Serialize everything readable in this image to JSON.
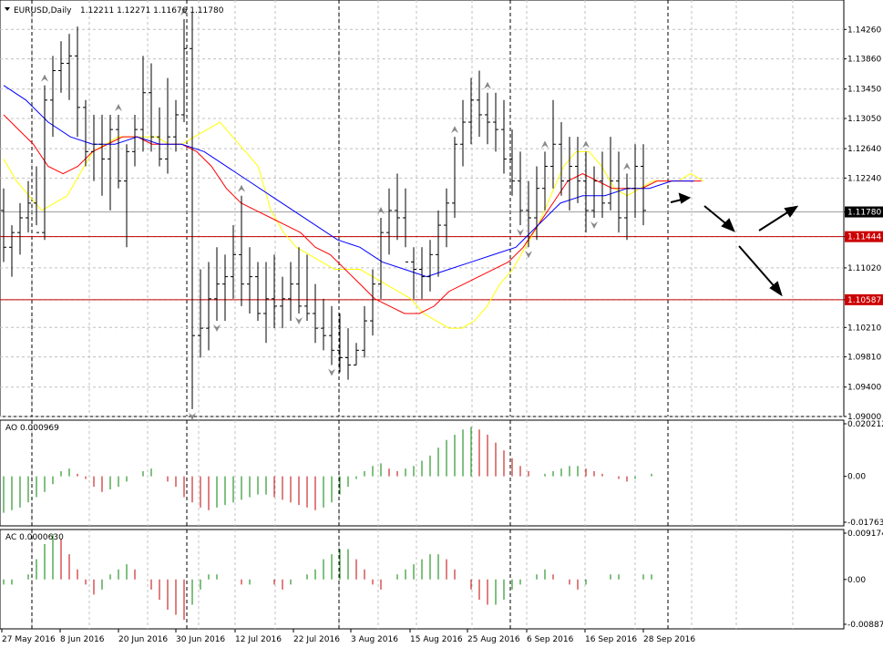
{
  "header": {
    "symbol_text": "EURUSD,Daily",
    "ohlc_text": "1.12211 1.12271 1.11676 1.11780"
  },
  "colors": {
    "bars": "#000000",
    "grid": "#c0c0c0",
    "level_lines": "#c00000",
    "ma_yellow": "#ffff00",
    "ma_red": "#ff0000",
    "ma_blue": "#0000ff",
    "ao_up": "#008000",
    "ao_down": "#c00000",
    "current_price_bg": "#000000",
    "level_label_bg": "#cc0000"
  },
  "chart_data": [
    {
      "type": "ohlc",
      "panel": "main",
      "title": "EURUSD,Daily",
      "ylim": [
        1.09,
        1.1466
      ],
      "y_ticks": [
        "1.14260",
        "1.13860",
        "1.13450",
        "1.13050",
        "1.12640",
        "1.12240",
        "1.11780",
        "1.11444",
        "1.11020",
        "1.10587",
        "1.10210",
        "1.09810",
        "1.09400",
        "1.09000"
      ],
      "x_tick_labels": [
        "27 May 2016",
        "8 Jun 2016",
        "20 Jun 2016",
        "30 Jun 2016",
        "12 Jul 2016",
        "22 Jul 2016",
        "3 Aug 2016",
        "15 Aug 2016",
        "25 Aug 2016",
        "6 Sep 2016",
        "16 Sep 2016",
        "28 Sep 2016"
      ],
      "current_price": "1.11780",
      "horizontal_levels": [
        "1.11444",
        "1.10587"
      ],
      "bars": [
        [
          1.118,
          1.121,
          1.111,
          1.113
        ],
        [
          1.113,
          1.116,
          1.109,
          1.115
        ],
        [
          1.115,
          1.119,
          1.112,
          1.117
        ],
        [
          1.117,
          1.122,
          1.115,
          1.119
        ],
        [
          1.119,
          1.124,
          1.116,
          1.115
        ],
        [
          1.115,
          1.135,
          1.114,
          1.133
        ],
        [
          1.133,
          1.139,
          1.128,
          1.137
        ],
        [
          1.137,
          1.141,
          1.134,
          1.138
        ],
        [
          1.138,
          1.142,
          1.133,
          1.139
        ],
        [
          1.139,
          1.143,
          1.128,
          1.132
        ],
        [
          1.132,
          1.133,
          1.124,
          1.126
        ],
        [
          1.126,
          1.131,
          1.122,
          1.127
        ],
        [
          1.127,
          1.131,
          1.12,
          1.125
        ],
        [
          1.125,
          1.131,
          1.118,
          1.129
        ],
        [
          1.129,
          1.131,
          1.121,
          1.122
        ],
        [
          1.122,
          1.127,
          1.113,
          1.126
        ],
        [
          1.126,
          1.131,
          1.124,
          1.129
        ],
        [
          1.129,
          1.139,
          1.126,
          1.134
        ],
        [
          1.134,
          1.138,
          1.126,
          1.128
        ],
        [
          1.128,
          1.132,
          1.124,
          1.125
        ],
        [
          1.125,
          1.136,
          1.123,
          1.128
        ],
        [
          1.128,
          1.133,
          1.126,
          1.131
        ],
        [
          1.131,
          1.144,
          1.13,
          1.14
        ],
        [
          1.14,
          1.145,
          1.091,
          1.101
        ],
        [
          1.101,
          1.11,
          1.098,
          1.102
        ],
        [
          1.102,
          1.111,
          1.099,
          1.106
        ],
        [
          1.106,
          1.113,
          1.103,
          1.108
        ],
        [
          1.108,
          1.112,
          1.103,
          1.109
        ],
        [
          1.109,
          1.116,
          1.106,
          1.112
        ],
        [
          1.112,
          1.12,
          1.105,
          1.108
        ],
        [
          1.108,
          1.113,
          1.104,
          1.109
        ],
        [
          1.109,
          1.111,
          1.103,
          1.104
        ],
        [
          1.104,
          1.111,
          1.1,
          1.106
        ],
        [
          1.106,
          1.112,
          1.102,
          1.105
        ],
        [
          1.105,
          1.109,
          1.102,
          1.106
        ],
        [
          1.106,
          1.111,
          1.103,
          1.108
        ],
        [
          1.108,
          1.113,
          1.104,
          1.105
        ],
        [
          1.105,
          1.112,
          1.103,
          1.104
        ],
        [
          1.104,
          1.108,
          1.1,
          1.102
        ],
        [
          1.102,
          1.106,
          1.099,
          1.101
        ],
        [
          1.101,
          1.105,
          1.097,
          1.099
        ],
        [
          1.099,
          1.104,
          1.096,
          1.098
        ],
        [
          1.098,
          1.102,
          1.095,
          1.097
        ],
        [
          1.097,
          1.1,
          1.097,
          1.099
        ],
        [
          1.099,
          1.105,
          1.098,
          1.103
        ],
        [
          1.103,
          1.11,
          1.101,
          1.108
        ],
        [
          1.108,
          1.117,
          1.106,
          1.115
        ],
        [
          1.115,
          1.121,
          1.112,
          1.118
        ],
        [
          1.118,
          1.123,
          1.114,
          1.117
        ],
        [
          1.117,
          1.121,
          1.113,
          1.111
        ],
        [
          1.111,
          1.113,
          1.106,
          1.11
        ],
        [
          1.11,
          1.113,
          1.106,
          1.109
        ],
        [
          1.109,
          1.114,
          1.107,
          1.112
        ],
        [
          1.112,
          1.118,
          1.109,
          1.116
        ],
        [
          1.116,
          1.121,
          1.113,
          1.119
        ],
        [
          1.119,
          1.128,
          1.117,
          1.127
        ],
        [
          1.127,
          1.133,
          1.124,
          1.13
        ],
        [
          1.13,
          1.136,
          1.127,
          1.133
        ],
        [
          1.133,
          1.137,
          1.128,
          1.131
        ],
        [
          1.131,
          1.134,
          1.127,
          1.13
        ],
        [
          1.13,
          1.134,
          1.126,
          1.129
        ],
        [
          1.129,
          1.133,
          1.123,
          1.125
        ],
        [
          1.125,
          1.129,
          1.12,
          1.122
        ],
        [
          1.122,
          1.126,
          1.116,
          1.118
        ],
        [
          1.118,
          1.122,
          1.113,
          1.117
        ],
        [
          1.117,
          1.124,
          1.114,
          1.121
        ],
        [
          1.121,
          1.126,
          1.118,
          1.124
        ],
        [
          1.124,
          1.133,
          1.121,
          1.127
        ],
        [
          1.127,
          1.13,
          1.12,
          1.122
        ],
        [
          1.122,
          1.128,
          1.118,
          1.124
        ],
        [
          1.124,
          1.128,
          1.119,
          1.122
        ],
        [
          1.122,
          1.126,
          1.115,
          1.118
        ],
        [
          1.118,
          1.124,
          1.117,
          1.122
        ],
        [
          1.122,
          1.126,
          1.117,
          1.119
        ],
        [
          1.119,
          1.128,
          1.118,
          1.122
        ],
        [
          1.122,
          1.126,
          1.115,
          1.117
        ],
        [
          1.117,
          1.123,
          1.114,
          1.121
        ],
        [
          1.121,
          1.127,
          1.117,
          1.124
        ],
        [
          1.124,
          1.127,
          1.116,
          1.118
        ]
      ],
      "ma_yellow": [
        1.125,
        1.122,
        1.12,
        1.118,
        1.119,
        1.12,
        1.123,
        1.126,
        1.127,
        1.128,
        1.128,
        1.128,
        1.128,
        1.127,
        1.127,
        1.128,
        1.129,
        1.13,
        1.128,
        1.126,
        1.124,
        1.118,
        1.115,
        1.113,
        1.112,
        1.111,
        1.11,
        1.11,
        1.11,
        1.109,
        1.108,
        1.107,
        1.106,
        1.104,
        1.103,
        1.102,
        1.102,
        1.103,
        1.105,
        1.108,
        1.11,
        1.113,
        1.116,
        1.12,
        1.124,
        1.126,
        1.126,
        1.124,
        1.121,
        1.12,
        1.121,
        1.122,
        1.122,
        1.122,
        1.123,
        1.122
      ],
      "ma_red": [
        1.131,
        1.129,
        1.127,
        1.124,
        1.123,
        1.124,
        1.126,
        1.127,
        1.128,
        1.128,
        1.127,
        1.127,
        1.127,
        1.126,
        1.124,
        1.121,
        1.119,
        1.118,
        1.117,
        1.116,
        1.115,
        1.113,
        1.112,
        1.11,
        1.108,
        1.106,
        1.105,
        1.104,
        1.104,
        1.105,
        1.107,
        1.108,
        1.109,
        1.11,
        1.111,
        1.113,
        1.116,
        1.119,
        1.122,
        1.123,
        1.122,
        1.121,
        1.121,
        1.121,
        1.122,
        1.122,
        1.122,
        1.122
      ],
      "ma_blue": [
        1.135,
        1.133,
        1.13,
        1.128,
        1.127,
        1.127,
        1.128,
        1.127,
        1.127,
        1.126,
        1.124,
        1.122,
        1.12,
        1.118,
        1.116,
        1.114,
        1.113,
        1.111,
        1.11,
        1.109,
        1.11,
        1.111,
        1.112,
        1.113,
        1.116,
        1.119,
        1.12,
        1.12,
        1.121,
        1.121,
        1.122,
        1.122
      ]
    },
    {
      "type": "bar",
      "panel": "AO",
      "label": "AO 0.000969",
      "ylim": [
        -0.01763,
        0.02021
      ],
      "y_ticks": [
        "0.020212",
        "0.00",
        "-0.017635"
      ],
      "values": [
        -0.014,
        -0.013,
        -0.012,
        -0.01,
        -0.008,
        -0.006,
        -0.003,
        0.002,
        0.003,
        0.001,
        -0.001,
        -0.004,
        -0.006,
        -0.005,
        -0.004,
        -0.002,
        0.0,
        0.002,
        0.003,
        0.0,
        -0.002,
        -0.004,
        -0.008,
        -0.01,
        -0.012,
        -0.013,
        -0.012,
        -0.011,
        -0.01,
        -0.009,
        -0.008,
        -0.007,
        -0.007,
        -0.008,
        -0.009,
        -0.01,
        -0.011,
        -0.012,
        -0.013,
        -0.012,
        -0.01,
        -0.007,
        -0.004,
        -0.001,
        0.002,
        0.004,
        0.005,
        0.003,
        0.002,
        0.003,
        0.004,
        0.006,
        0.008,
        0.011,
        0.014,
        0.016,
        0.018,
        0.019,
        0.018,
        0.016,
        0.013,
        0.01,
        0.007,
        0.004,
        0.002,
        0.0,
        0.001,
        0.002,
        0.003,
        0.004,
        0.004,
        0.003,
        0.002,
        0.001,
        0.0,
        -0.001,
        -0.002,
        -0.001,
        0.0,
        0.001,
        0.0
      ]
    },
    {
      "type": "bar",
      "panel": "AC",
      "label": "AC 0.0000630",
      "ylim": [
        -0.00888,
        0.00917
      ],
      "y_ticks": [
        "0.009174",
        "0.00",
        "-0.008875"
      ],
      "values": [
        -0.001,
        -0.001,
        0.0,
        0.001,
        0.004,
        0.007,
        0.009,
        0.008,
        0.005,
        0.002,
        -0.001,
        -0.003,
        -0.002,
        0.001,
        0.002,
        0.003,
        0.002,
        0.0,
        -0.002,
        -0.004,
        -0.006,
        -0.007,
        -0.008,
        -0.005,
        -0.002,
        0.001,
        0.001,
        0.0,
        0.0,
        -0.001,
        -0.001,
        0.0,
        0.0,
        -0.001,
        -0.002,
        -0.001,
        0.0,
        0.001,
        0.002,
        0.004,
        0.005,
        0.006,
        0.006,
        0.004,
        0.002,
        -0.001,
        -0.002,
        0.0,
        0.001,
        0.002,
        0.003,
        0.004,
        0.005,
        0.005,
        0.004,
        0.002,
        0.0,
        -0.002,
        -0.004,
        -0.005,
        -0.005,
        -0.004,
        -0.002,
        -0.001,
        0.0,
        0.001,
        0.002,
        0.001,
        0.0,
        -0.001,
        -0.002,
        -0.001,
        0.0,
        0.0,
        0.001,
        0.001,
        0.0,
        0.0,
        0.001,
        0.001,
        0.0
      ]
    }
  ]
}
